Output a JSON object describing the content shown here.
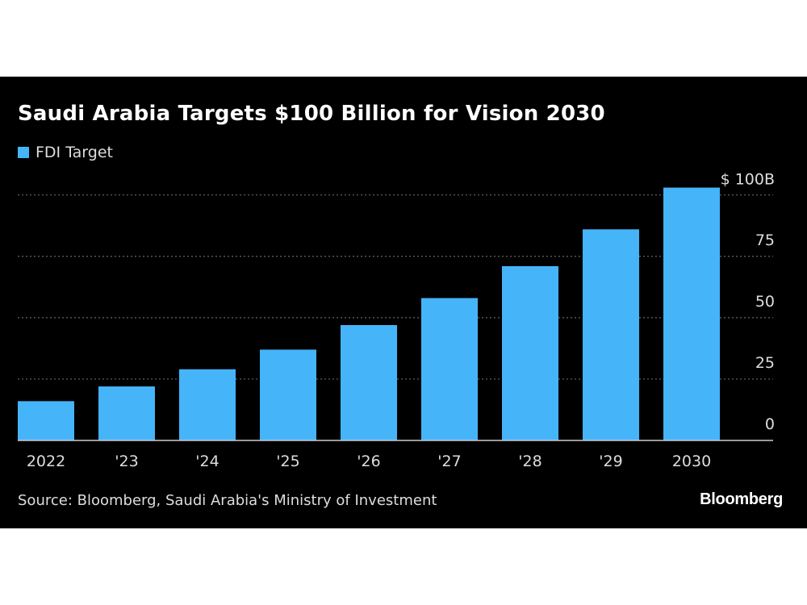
{
  "title": "Saudi Arabia Targets $100 Billion for Vision 2030",
  "source": "Source: Bloomberg, Saudi Arabia's Ministry of Investment",
  "logo": "Bloomberg",
  "colors": {
    "background": "#000000",
    "bar": "#45b4f9",
    "text": "#dddddd",
    "grid": "#666666"
  },
  "chart_data": {
    "type": "bar",
    "title": "Saudi Arabia Targets $100 Billion for Vision 2030",
    "categories": [
      "2022",
      "'23",
      "'24",
      "'25",
      "'26",
      "'27",
      "'28",
      "'29",
      "2030"
    ],
    "series": [
      {
        "name": "FDI Target",
        "values": [
          16,
          22,
          29,
          37,
          47,
          58,
          71,
          86,
          103
        ]
      }
    ],
    "yticks": [
      0,
      25,
      50,
      75,
      100
    ],
    "ytick_labels": [
      "0",
      "25",
      "50",
      "75",
      "$ 100B"
    ],
    "ylim": [
      0,
      100
    ],
    "grid": "horizontal dotted",
    "y_axis_side": "right",
    "legend_placement": "top-left"
  }
}
